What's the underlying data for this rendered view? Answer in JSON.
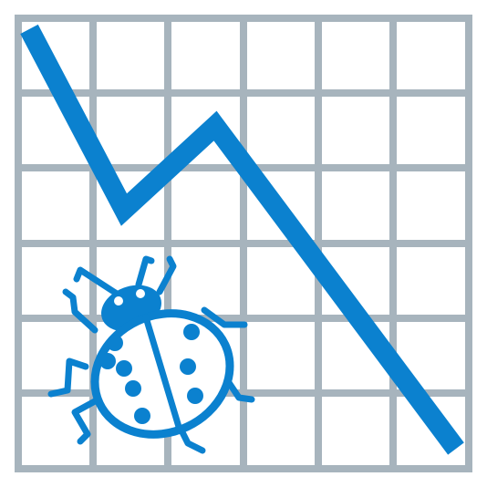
{
  "icon": {
    "name": "bug-trend-down-icon",
    "grid_color": "#a7b4bd",
    "line_color": "#0b81cf",
    "bug_color": "#0b81cf",
    "background": "#ffffff"
  }
}
